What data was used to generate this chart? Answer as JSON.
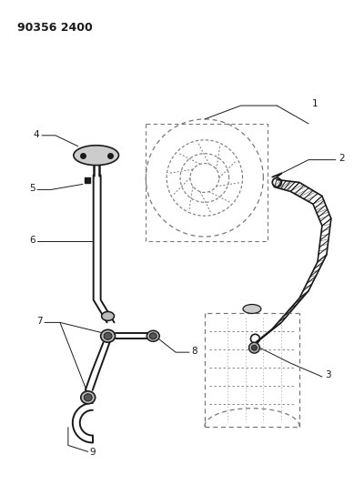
{
  "title": "90356 2400",
  "background_color": "#ffffff",
  "line_color": "#1a1a1a",
  "dashed_color": "#777777",
  "figsize": [
    4.0,
    5.33
  ],
  "dpi": 100,
  "label_fs": 7.5
}
